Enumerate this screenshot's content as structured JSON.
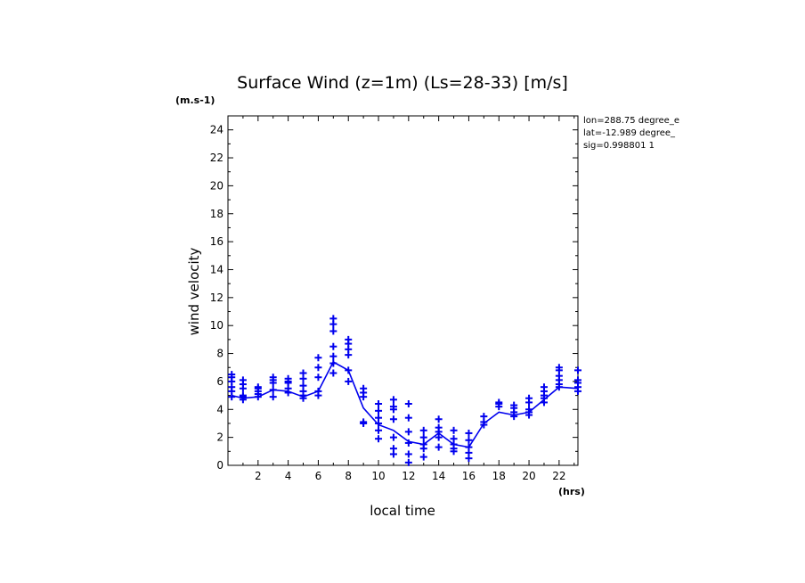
{
  "chart_data": {
    "type": "scatter",
    "title": "Surface Wind (z=1m) (Ls=28-33) [m/s]",
    "ylabel": "wind velocity",
    "yunit": "(m.s-1)",
    "xlabel": "local time",
    "xunit": "(hrs)",
    "xlim": [
      0,
      23.25
    ],
    "ylim": [
      0,
      25
    ],
    "xticks": [
      2,
      4,
      6,
      8,
      10,
      12,
      14,
      16,
      18,
      20,
      22
    ],
    "yticks": [
      0,
      2,
      4,
      6,
      8,
      10,
      12,
      14,
      16,
      18,
      20,
      22,
      24
    ],
    "info_lines": [
      "lon=288.75 degree_e",
      "lat=-12.989 degree_",
      "sig=0.998801 1"
    ],
    "colors": {
      "series": "#0000ee",
      "axes": "#000000"
    },
    "series": [
      {
        "name": "mean",
        "style": "line",
        "x": [
          0.25,
          1.0,
          2.0,
          3.0,
          4.0,
          5.0,
          6.0,
          7.0,
          8.0,
          9.0,
          10.0,
          11.0,
          12.0,
          13.0,
          14.0,
          15.0,
          16.0,
          17.0,
          18.0,
          19.0,
          20.0,
          21.0,
          22.0,
          23.25
        ],
        "y": [
          5.0,
          4.8,
          4.9,
          5.4,
          5.3,
          4.9,
          5.3,
          7.4,
          6.8,
          4.1,
          2.9,
          2.5,
          1.7,
          1.5,
          2.3,
          1.5,
          1.3,
          3.0,
          3.8,
          3.6,
          3.8,
          4.7,
          5.6,
          5.5
        ]
      },
      {
        "name": "samples",
        "style": "plus",
        "points": [
          {
            "x": 0.25,
            "y": [
              4.9,
              5.3,
              5.6,
              6.0,
              6.3,
              6.5
            ]
          },
          {
            "x": 1.0,
            "y": [
              4.7,
              4.9,
              5.0,
              5.5,
              5.8,
              6.1
            ]
          },
          {
            "x": 2.0,
            "y": [
              4.9,
              5.1,
              5.3,
              5.5,
              5.6
            ]
          },
          {
            "x": 3.0,
            "y": [
              4.9,
              5.4,
              5.9,
              6.1,
              6.3
            ]
          },
          {
            "x": 4.0,
            "y": [
              5.2,
              5.5,
              5.9,
              6.0,
              6.2
            ]
          },
          {
            "x": 5.0,
            "y": [
              4.8,
              5.0,
              5.3,
              5.7,
              6.2,
              6.6
            ]
          },
          {
            "x": 6.0,
            "y": [
              5.0,
              5.3,
              6.3,
              7.0,
              7.7
            ]
          },
          {
            "x": 7.0,
            "y": [
              6.6,
              7.3,
              7.8,
              8.5,
              9.6,
              10.1,
              10.5
            ]
          },
          {
            "x": 8.0,
            "y": [
              6.0,
              6.8,
              7.9,
              8.3,
              8.7,
              9.0
            ]
          },
          {
            "x": 9.0,
            "y": [
              3.0,
              3.1,
              4.9,
              5.2,
              5.5
            ]
          },
          {
            "x": 10.0,
            "y": [
              1.9,
              2.5,
              3.0,
              3.4,
              3.9,
              4.4
            ]
          },
          {
            "x": 11.0,
            "y": [
              0.8,
              1.2,
              2.0,
              3.3,
              4.0,
              4.2,
              4.7
            ]
          },
          {
            "x": 12.0,
            "y": [
              0.2,
              0.8,
              1.6,
              2.4,
              3.4,
              4.4
            ]
          },
          {
            "x": 13.0,
            "y": [
              0.6,
              1.2,
              1.5,
              2.0,
              2.5
            ]
          },
          {
            "x": 14.0,
            "y": [
              1.3,
              2.0,
              2.4,
              2.7,
              3.3
            ]
          },
          {
            "x": 15.0,
            "y": [
              1.0,
              1.2,
              1.5,
              1.9,
              2.5
            ]
          },
          {
            "x": 16.0,
            "y": [
              0.5,
              0.9,
              1.3,
              1.8,
              2.3
            ]
          },
          {
            "x": 17.0,
            "y": [
              2.9,
              3.1,
              3.5
            ]
          },
          {
            "x": 18.0,
            "y": [
              4.2,
              4.4,
              4.5
            ]
          },
          {
            "x": 19.0,
            "y": [
              3.5,
              3.8,
              4.1,
              4.3
            ]
          },
          {
            "x": 20.0,
            "y": [
              3.6,
              3.8,
              4.0,
              4.5,
              4.8
            ]
          },
          {
            "x": 21.0,
            "y": [
              4.5,
              4.8,
              5.0,
              5.3,
              5.6
            ]
          },
          {
            "x": 22.0,
            "y": [
              5.6,
              5.8,
              6.1,
              6.4,
              6.8,
              7.0
            ]
          },
          {
            "x": 23.25,
            "y": [
              5.3,
              5.6,
              5.9,
              6.1,
              6.8
            ]
          }
        ]
      }
    ]
  }
}
